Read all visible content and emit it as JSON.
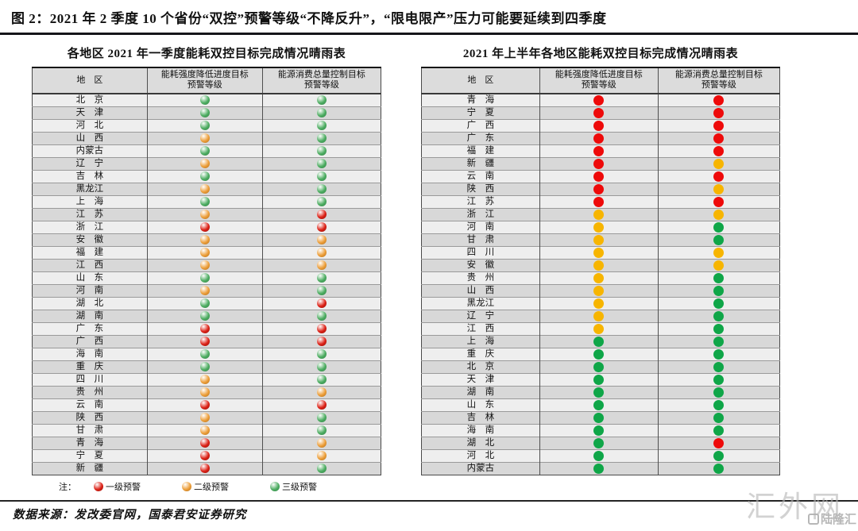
{
  "page": {
    "figure_title": "图 2：2021 年 2 季度 10 个省份“双控”预警等级“不降反升”，“限电限产”压力可能要延续到四季度",
    "source_note": "数据来源：发改委官网，国泰君安证券研究"
  },
  "legend": {
    "note_label": "注：",
    "items": [
      {
        "label": "一级预警",
        "level": "red"
      },
      {
        "label": "二级预警",
        "level": "yellow"
      },
      {
        "label": "三级预警",
        "level": "green"
      }
    ]
  },
  "colors": {
    "flat": {
      "red": "#ee0a0a",
      "yellow": "#f7b500",
      "green": "#0fa648"
    },
    "glossy": {
      "red": {
        "base": "#dd2318",
        "dark": "#8e0b05"
      },
      "yellow": {
        "base": "#eda03c",
        "dark": "#b26a12"
      },
      "green": {
        "base": "#4fae63",
        "dark": "#2b7f41"
      }
    },
    "row_odd": "#eeeeee",
    "row_even": "#d8d8d8",
    "header_bg": "#dcdcdc"
  },
  "watermark": {
    "main": "汇外网",
    "badge": "陆隆汇"
  },
  "chart_data": [
    {
      "type": "table",
      "dot_style": "glossy",
      "title": "各地区 2021 年一季度能耗双控目标完成情况晴雨表",
      "columns": [
        "地　区",
        "能耗强度降低进度目标\n预警等级",
        "能源消费总量控制目标\n预警等级"
      ],
      "level_meaning": {
        "red": "一级预警",
        "yellow": "二级预警",
        "green": "三级预警"
      },
      "rows": [
        {
          "region": "北　京",
          "intensity": "green",
          "consumption": "green"
        },
        {
          "region": "天　津",
          "intensity": "green",
          "consumption": "green"
        },
        {
          "region": "河　北",
          "intensity": "green",
          "consumption": "green"
        },
        {
          "region": "山　西",
          "intensity": "yellow",
          "consumption": "green"
        },
        {
          "region": "内蒙古",
          "intensity": "green",
          "consumption": "green"
        },
        {
          "region": "辽　宁",
          "intensity": "yellow",
          "consumption": "green"
        },
        {
          "region": "吉　林",
          "intensity": "green",
          "consumption": "green"
        },
        {
          "region": "黑龙江",
          "intensity": "yellow",
          "consumption": "green"
        },
        {
          "region": "上　海",
          "intensity": "green",
          "consumption": "green"
        },
        {
          "region": "江　苏",
          "intensity": "yellow",
          "consumption": "red"
        },
        {
          "region": "浙　江",
          "intensity": "red",
          "consumption": "red"
        },
        {
          "region": "安　徽",
          "intensity": "yellow",
          "consumption": "yellow"
        },
        {
          "region": "福　建",
          "intensity": "yellow",
          "consumption": "yellow"
        },
        {
          "region": "江　西",
          "intensity": "yellow",
          "consumption": "yellow"
        },
        {
          "region": "山　东",
          "intensity": "green",
          "consumption": "green"
        },
        {
          "region": "河　南",
          "intensity": "yellow",
          "consumption": "green"
        },
        {
          "region": "湖　北",
          "intensity": "green",
          "consumption": "red"
        },
        {
          "region": "湖　南",
          "intensity": "green",
          "consumption": "green"
        },
        {
          "region": "广　东",
          "intensity": "red",
          "consumption": "red"
        },
        {
          "region": "广　西",
          "intensity": "red",
          "consumption": "red"
        },
        {
          "region": "海　南",
          "intensity": "green",
          "consumption": "green"
        },
        {
          "region": "重　庆",
          "intensity": "green",
          "consumption": "green"
        },
        {
          "region": "四　川",
          "intensity": "yellow",
          "consumption": "green"
        },
        {
          "region": "贵　州",
          "intensity": "yellow",
          "consumption": "yellow"
        },
        {
          "region": "云　南",
          "intensity": "red",
          "consumption": "red"
        },
        {
          "region": "陕　西",
          "intensity": "yellow",
          "consumption": "green"
        },
        {
          "region": "甘　肃",
          "intensity": "yellow",
          "consumption": "green"
        },
        {
          "region": "青　海",
          "intensity": "red",
          "consumption": "yellow"
        },
        {
          "region": "宁　夏",
          "intensity": "red",
          "consumption": "yellow"
        },
        {
          "region": "新　疆",
          "intensity": "red",
          "consumption": "green"
        }
      ]
    },
    {
      "type": "table",
      "dot_style": "flat",
      "title": "2021 年上半年各地区能耗双控目标完成情况晴雨表",
      "columns": [
        "地　区",
        "能耗强度降低进度目标\n预警等级",
        "能源消费总量控制目标\n预警等级"
      ],
      "level_meaning": {
        "red": "一级预警",
        "yellow": "二级预警",
        "green": "三级预警"
      },
      "rows": [
        {
          "region": "青　海",
          "intensity": "red",
          "consumption": "red"
        },
        {
          "region": "宁　夏",
          "intensity": "red",
          "consumption": "red"
        },
        {
          "region": "广　西",
          "intensity": "red",
          "consumption": "red"
        },
        {
          "region": "广　东",
          "intensity": "red",
          "consumption": "red"
        },
        {
          "region": "福　建",
          "intensity": "red",
          "consumption": "red"
        },
        {
          "region": "新　疆",
          "intensity": "red",
          "consumption": "yellow"
        },
        {
          "region": "云　南",
          "intensity": "red",
          "consumption": "red"
        },
        {
          "region": "陕　西",
          "intensity": "red",
          "consumption": "yellow"
        },
        {
          "region": "江　苏",
          "intensity": "red",
          "consumption": "red"
        },
        {
          "region": "浙　江",
          "intensity": "yellow",
          "consumption": "yellow"
        },
        {
          "region": "河　南",
          "intensity": "yellow",
          "consumption": "green"
        },
        {
          "region": "甘　肃",
          "intensity": "yellow",
          "consumption": "green"
        },
        {
          "region": "四　川",
          "intensity": "yellow",
          "consumption": "yellow"
        },
        {
          "region": "安　徽",
          "intensity": "yellow",
          "consumption": "yellow"
        },
        {
          "region": "贵　州",
          "intensity": "yellow",
          "consumption": "green"
        },
        {
          "region": "山　西",
          "intensity": "yellow",
          "consumption": "green"
        },
        {
          "region": "黑龙江",
          "intensity": "yellow",
          "consumption": "green"
        },
        {
          "region": "辽　宁",
          "intensity": "yellow",
          "consumption": "green"
        },
        {
          "region": "江　西",
          "intensity": "yellow",
          "consumption": "green"
        },
        {
          "region": "上　海",
          "intensity": "green",
          "consumption": "green"
        },
        {
          "region": "重　庆",
          "intensity": "green",
          "consumption": "green"
        },
        {
          "region": "北　京",
          "intensity": "green",
          "consumption": "green"
        },
        {
          "region": "天　津",
          "intensity": "green",
          "consumption": "green"
        },
        {
          "region": "湖　南",
          "intensity": "green",
          "consumption": "green"
        },
        {
          "region": "山　东",
          "intensity": "green",
          "consumption": "green"
        },
        {
          "region": "吉　林",
          "intensity": "green",
          "consumption": "green"
        },
        {
          "region": "海　南",
          "intensity": "green",
          "consumption": "green"
        },
        {
          "region": "湖　北",
          "intensity": "green",
          "consumption": "red"
        },
        {
          "region": "河　北",
          "intensity": "green",
          "consumption": "green"
        },
        {
          "region": "内蒙古",
          "intensity": "green",
          "consumption": "green"
        }
      ]
    }
  ]
}
